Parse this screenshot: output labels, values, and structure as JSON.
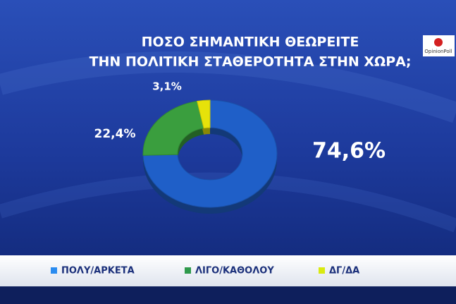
{
  "logo": "OpinionPoll",
  "chart_data": {
    "type": "pie",
    "title": [
      "ΠΟΣΟ ΣΗΜΑΝΤΙΚΗ ΘΕΩΡΕΙΤΕ",
      "ΤΗΝ ΠΟΛΙΤΙΚΗ ΣΤΑΘΕΡΟΤΗΤΑ ΣΤΗΝ ΧΩΡΑ;"
    ],
    "categories": [
      "ΠΟΛΥ/ΑΡΚΕΤΑ",
      "ΛΙΓΟ/ΚΑΘΟΛΟΥ",
      "ΔΓ/ΔΑ"
    ],
    "values": [
      74.6,
      22.4,
      3.1
    ],
    "value_labels": [
      "74,6%",
      "22,4%",
      "3,1%"
    ],
    "colors": [
      "#1f5fc8",
      "#3a9e3e",
      "#e6e20a"
    ],
    "legend_colors": [
      "#2a8cf0",
      "#2f9a4c",
      "#d9ea10"
    ],
    "donut": true,
    "legend": "bottom"
  }
}
